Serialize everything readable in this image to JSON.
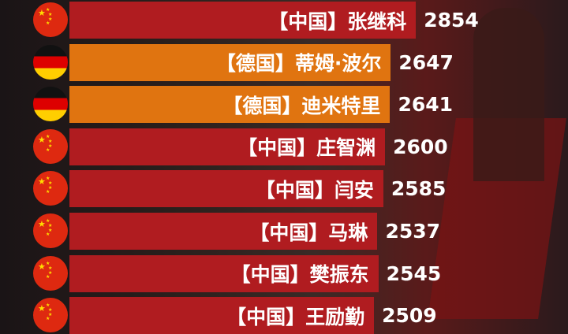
{
  "chart_data": {
    "type": "bar",
    "orientation": "horizontal",
    "categories": [
      "【中国】张继科",
      "【德国】蒂姆·波尔",
      "【德国】迪米特里",
      "【中国】庄智渊",
      "【中国】闫安",
      "【中国】马琳",
      "【中国】樊振东",
      "【中国】王励勤"
    ],
    "countries": [
      "China",
      "Germany",
      "Germany",
      "China",
      "China",
      "China",
      "China",
      "China"
    ],
    "values": [
      2854,
      2647,
      2641,
      2600,
      2585,
      2537,
      2545,
      2509
    ],
    "colors": {
      "China": "#b01c20",
      "Germany": "#e07410"
    },
    "title": "",
    "xlabel": "",
    "ylabel": ""
  }
}
